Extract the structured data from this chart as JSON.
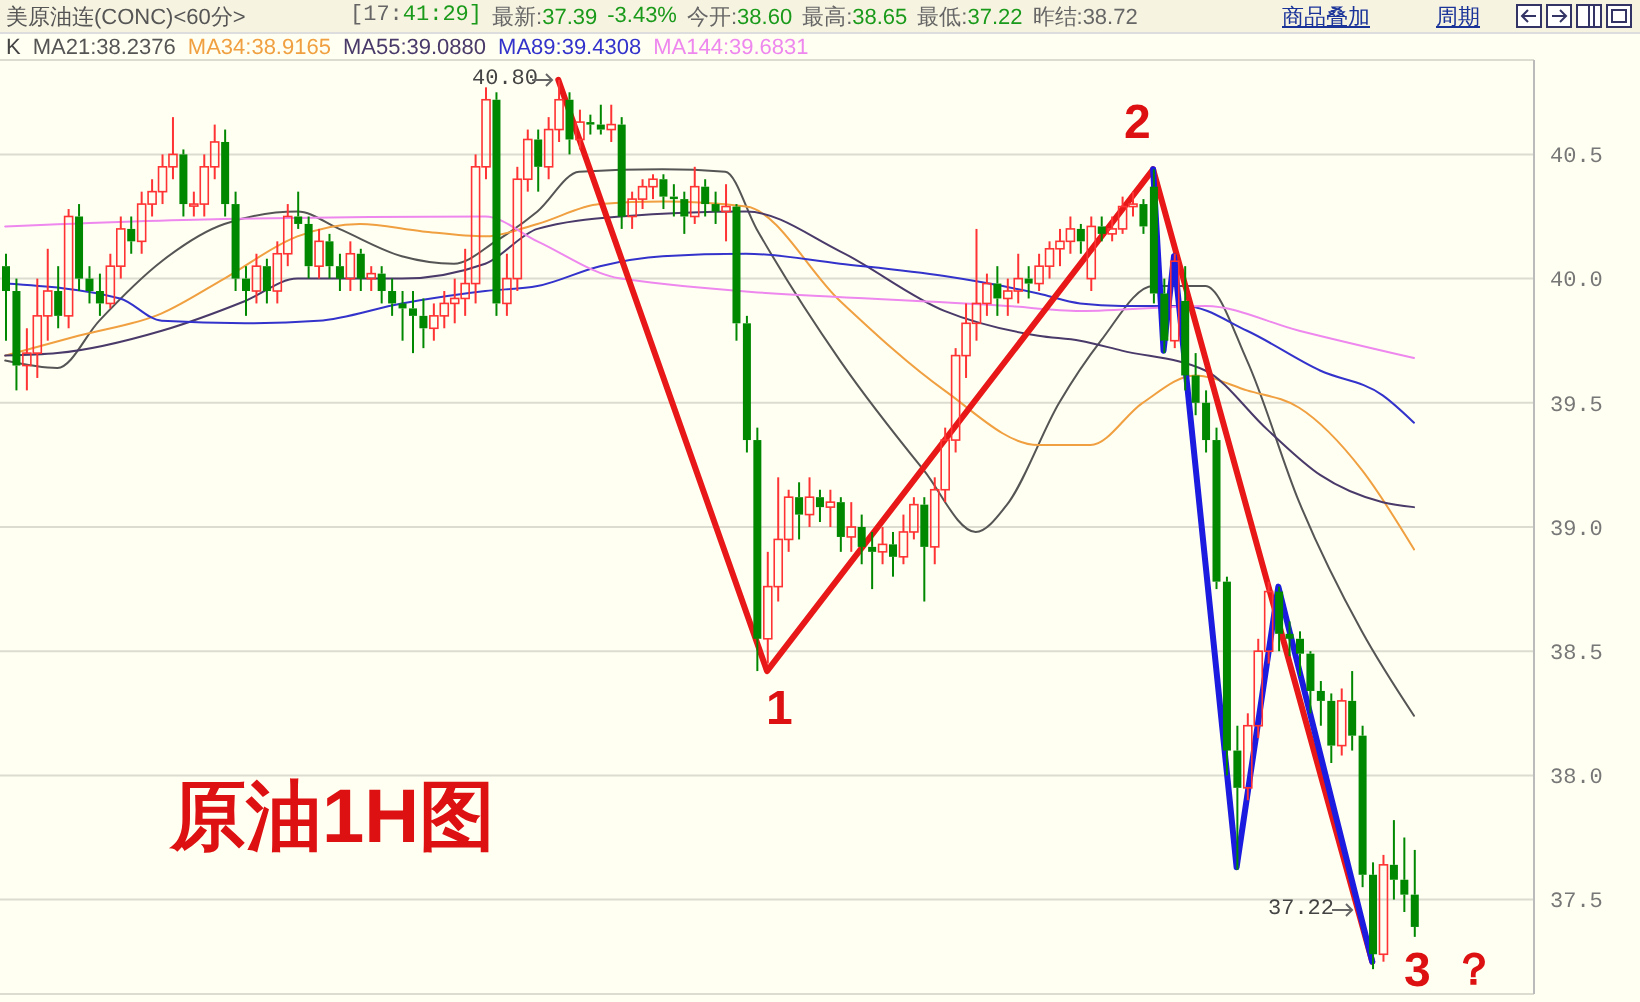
{
  "chart_data": {
    "type": "candlestick",
    "title": "美原油连(CONC)<60分>",
    "categories": [
      null,
      null,
      null,
      null,
      null,
      null,
      null,
      null,
      null,
      null,
      null,
      null,
      null,
      null,
      null,
      null,
      null,
      null,
      null,
      null,
      null,
      null,
      null,
      null,
      null,
      null,
      null,
      null,
      null,
      null,
      null,
      null,
      null,
      null,
      null,
      null,
      null,
      null,
      null,
      null,
      null,
      null,
      null,
      null,
      null,
      null,
      null,
      null,
      null,
      null,
      null,
      null,
      null,
      null,
      null,
      null,
      null,
      null,
      null,
      null,
      null,
      null,
      null,
      null,
      null,
      null,
      null,
      null,
      null,
      null,
      null,
      null,
      null,
      null,
      null,
      null,
      null,
      null,
      null,
      null,
      null,
      null,
      null,
      null,
      null,
      null,
      null,
      null,
      null,
      null,
      null,
      null,
      null,
      null,
      null,
      null,
      null,
      null,
      null,
      null,
      null,
      null,
      null,
      null,
      null,
      null,
      null,
      null,
      null,
      null,
      null,
      null,
      null,
      null,
      null,
      null,
      null,
      null,
      null,
      null,
      null,
      null,
      null,
      null,
      null,
      null,
      null,
      null,
      null,
      null,
      null,
      null,
      null,
      null,
      null,
      null,
      null,
      null,
      null,
      null,
      null,
      null,
      null,
      null,
      null,
      null,
      null
    ],
    "series": [
      {
        "ohlc": [
          [
            40.05,
            40.1,
            39.75,
            39.95
          ],
          [
            39.95,
            40.0,
            39.55,
            39.65
          ],
          [
            39.65,
            39.8,
            39.55,
            39.7
          ],
          [
            39.7,
            40.0,
            39.6,
            39.85
          ],
          [
            39.85,
            40.12,
            39.75,
            39.95
          ],
          [
            39.95,
            40.05,
            39.8,
            39.85
          ],
          [
            39.85,
            40.28,
            39.8,
            40.25
          ],
          [
            40.25,
            40.3,
            39.95,
            40.0
          ],
          [
            40.0,
            40.05,
            39.9,
            39.95
          ],
          [
            39.95,
            40.02,
            39.85,
            39.9
          ],
          [
            39.9,
            40.1,
            39.88,
            40.05
          ],
          [
            40.05,
            40.25,
            40.0,
            40.2
          ],
          [
            40.2,
            40.25,
            40.1,
            40.15
          ],
          [
            40.15,
            40.35,
            40.1,
            40.3
          ],
          [
            40.3,
            40.4,
            40.25,
            40.35
          ],
          [
            40.35,
            40.5,
            40.3,
            40.45
          ],
          [
            40.45,
            40.65,
            40.4,
            40.5
          ],
          [
            40.5,
            40.52,
            40.25,
            40.3
          ],
          [
            40.3,
            40.35,
            40.25,
            40.3
          ],
          [
            40.3,
            40.5,
            40.25,
            40.45
          ],
          [
            40.45,
            40.62,
            40.4,
            40.55
          ],
          [
            40.55,
            40.6,
            40.25,
            40.3
          ],
          [
            40.3,
            40.35,
            39.95,
            40.0
          ],
          [
            40.0,
            40.05,
            39.85,
            39.95
          ],
          [
            39.95,
            40.1,
            39.9,
            40.05
          ],
          [
            40.05,
            40.08,
            39.9,
            39.95
          ],
          [
            39.95,
            40.15,
            39.9,
            40.1
          ],
          [
            40.1,
            40.3,
            40.05,
            40.25
          ],
          [
            40.25,
            40.35,
            40.2,
            40.22
          ],
          [
            40.22,
            40.25,
            40.0,
            40.05
          ],
          [
            40.05,
            40.2,
            40.0,
            40.15
          ],
          [
            40.15,
            40.18,
            40.0,
            40.05
          ],
          [
            40.05,
            40.1,
            39.95,
            40.0
          ],
          [
            40.0,
            40.15,
            39.95,
            40.1
          ],
          [
            40.1,
            40.12,
            39.95,
            40.0
          ],
          [
            40.0,
            40.05,
            39.95,
            40.02
          ],
          [
            40.02,
            40.05,
            39.9,
            39.95
          ],
          [
            39.95,
            40.0,
            39.85,
            39.9
          ],
          [
            39.9,
            39.95,
            39.75,
            39.88
          ],
          [
            39.88,
            39.95,
            39.7,
            39.85
          ],
          [
            39.85,
            39.92,
            39.72,
            39.8
          ],
          [
            39.8,
            39.9,
            39.75,
            39.85
          ],
          [
            39.85,
            39.95,
            39.8,
            39.9
          ],
          [
            39.9,
            40.0,
            39.82,
            39.92
          ],
          [
            39.92,
            40.12,
            39.85,
            39.98
          ],
          [
            39.98,
            40.5,
            39.9,
            40.45
          ],
          [
            40.45,
            40.77,
            40.4,
            40.72
          ],
          [
            40.72,
            40.75,
            39.85,
            39.9
          ],
          [
            39.9,
            40.1,
            39.85,
            40.0
          ],
          [
            40.0,
            40.45,
            39.95,
            40.4
          ],
          [
            40.4,
            40.6,
            40.35,
            40.56
          ],
          [
            40.56,
            40.6,
            40.35,
            40.45
          ],
          [
            40.45,
            40.65,
            40.4,
            40.6
          ],
          [
            40.6,
            40.8,
            40.55,
            40.72
          ],
          [
            40.72,
            40.75,
            40.5,
            40.56
          ],
          [
            40.56,
            40.68,
            40.52,
            40.63
          ],
          [
            40.63,
            40.66,
            40.58,
            40.62
          ],
          [
            40.62,
            40.7,
            40.58,
            40.6
          ],
          [
            40.6,
            40.7,
            40.55,
            40.62
          ],
          [
            40.62,
            40.65,
            40.2,
            40.25
          ],
          [
            40.25,
            40.35,
            40.2,
            40.32
          ],
          [
            40.32,
            40.4,
            40.28,
            40.37
          ],
          [
            40.37,
            40.42,
            40.32,
            40.4
          ],
          [
            40.4,
            40.42,
            40.28,
            40.33
          ],
          [
            40.33,
            40.38,
            40.25,
            40.32
          ],
          [
            40.32,
            40.35,
            40.18,
            40.25
          ],
          [
            40.25,
            40.45,
            40.22,
            40.37
          ],
          [
            40.37,
            40.4,
            40.25,
            40.3
          ],
          [
            40.3,
            40.35,
            40.22,
            40.27
          ],
          [
            40.27,
            40.38,
            40.15,
            40.29
          ],
          [
            40.29,
            40.3,
            39.75,
            39.82
          ],
          [
            39.82,
            39.85,
            39.3,
            39.35
          ],
          [
            39.35,
            39.4,
            38.42,
            38.55
          ],
          [
            38.55,
            38.9,
            38.45,
            38.76
          ],
          [
            38.76,
            39.2,
            38.7,
            38.95
          ],
          [
            38.95,
            39.15,
            38.9,
            39.12
          ],
          [
            39.12,
            39.18,
            38.95,
            39.05
          ],
          [
            39.05,
            39.2,
            39.0,
            39.12
          ],
          [
            39.12,
            39.15,
            39.02,
            39.08
          ],
          [
            39.08,
            39.15,
            39.0,
            39.1
          ],
          [
            39.1,
            39.12,
            38.9,
            38.96
          ],
          [
            38.96,
            39.1,
            38.9,
            39.0
          ],
          [
            39.0,
            39.05,
            38.85,
            38.92
          ],
          [
            38.92,
            38.98,
            38.75,
            38.9
          ],
          [
            38.9,
            39.0,
            38.85,
            38.93
          ],
          [
            38.93,
            38.98,
            38.8,
            38.88
          ],
          [
            38.88,
            39.05,
            38.85,
            38.98
          ],
          [
            38.98,
            39.12,
            38.95,
            39.09
          ],
          [
            39.09,
            39.12,
            38.7,
            38.92
          ],
          [
            38.92,
            39.2,
            38.85,
            39.15
          ],
          [
            39.15,
            39.4,
            39.1,
            39.35
          ],
          [
            39.35,
            39.72,
            39.3,
            39.69
          ],
          [
            39.69,
            39.9,
            39.6,
            39.82
          ],
          [
            39.82,
            40.2,
            39.75,
            39.9
          ],
          [
            39.9,
            40.02,
            39.85,
            39.98
          ],
          [
            39.98,
            40.05,
            39.85,
            39.92
          ],
          [
            39.92,
            40.0,
            39.85,
            39.95
          ],
          [
            39.95,
            40.1,
            39.9,
            40.0
          ],
          [
            40.0,
            40.05,
            39.92,
            39.98
          ],
          [
            39.98,
            40.1,
            39.95,
            40.05
          ],
          [
            40.05,
            40.15,
            40.0,
            40.12
          ],
          [
            40.12,
            40.2,
            40.05,
            40.15
          ],
          [
            40.15,
            40.25,
            40.1,
            40.2
          ],
          [
            40.2,
            40.22,
            40.1,
            40.15
          ],
          [
            40.0,
            40.25,
            39.95,
            40.21
          ],
          [
            40.21,
            40.25,
            40.15,
            40.18
          ],
          [
            40.18,
            40.25,
            40.15,
            40.2
          ],
          [
            40.2,
            40.33,
            40.18,
            40.29
          ],
          [
            40.29,
            40.35,
            40.25,
            40.3
          ],
          [
            40.3,
            40.32,
            40.18,
            40.21
          ],
          [
            40.37,
            40.44,
            39.9,
            39.94
          ],
          [
            39.94,
            40.0,
            39.7,
            39.75
          ],
          [
            39.75,
            40.1,
            39.72,
            40.07
          ],
          [
            39.91,
            40.05,
            39.55,
            39.61
          ],
          [
            39.61,
            39.7,
            39.45,
            39.5
          ],
          [
            39.5,
            39.55,
            39.3,
            39.35
          ],
          [
            39.35,
            39.4,
            38.75,
            38.78
          ],
          [
            38.78,
            38.8,
            38.0,
            38.1
          ],
          [
            38.1,
            38.2,
            37.62,
            37.95
          ],
          [
            37.95,
            38.25,
            37.9,
            38.2
          ],
          [
            38.2,
            38.55,
            38.15,
            38.5
          ],
          [
            38.5,
            38.78,
            38.45,
            38.74
          ],
          [
            38.74,
            38.76,
            38.5,
            38.57
          ],
          [
            38.57,
            38.62,
            38.48,
            38.55
          ],
          [
            38.55,
            38.58,
            38.4,
            38.49
          ],
          [
            38.49,
            38.5,
            38.25,
            38.34
          ],
          [
            38.34,
            38.38,
            38.2,
            38.3
          ],
          [
            38.3,
            38.33,
            38.05,
            38.12
          ],
          [
            38.12,
            38.35,
            38.08,
            38.3
          ],
          [
            38.3,
            38.42,
            38.1,
            38.16
          ],
          [
            38.16,
            38.2,
            37.55,
            37.6
          ],
          [
            37.6,
            37.65,
            37.22,
            37.28
          ],
          [
            37.28,
            37.68,
            37.25,
            37.64
          ],
          [
            37.64,
            37.82,
            37.5,
            37.58
          ],
          [
            37.58,
            37.75,
            37.45,
            37.52
          ],
          [
            37.52,
            37.7,
            37.35,
            37.39
          ],
          null,
          null,
          null,
          null,
          null,
          null,
          null,
          null,
          null,
          null,
          null
        ],
        "colors": [
          "#008800",
          "#008800",
          "#ff3333",
          "#ff3333",
          "#ff3333",
          "#008800",
          "#ff3333",
          "#008800",
          "#008800",
          "#008800",
          "#ff3333",
          "#ff3333",
          "#008800",
          "#ff3333",
          "#ff3333",
          "#ff3333",
          "#ff3333",
          "#008800",
          "#ff3333",
          "#ff3333",
          "#ff3333",
          "#008800",
          "#008800",
          "#008800",
          "#ff3333",
          "#008800",
          "#ff3333",
          "#ff3333",
          "#008800",
          "#008800",
          "#ff3333",
          "#008800",
          "#008800",
          "#ff3333",
          "#008800",
          "#ff3333",
          "#008800",
          "#008800",
          "#008800",
          "#008800",
          "#008800",
          "#ff3333",
          "#ff3333",
          "#ff3333",
          "#ff3333",
          "#ff3333",
          "#ff3333",
          "#008800",
          "#ff3333",
          "#ff3333",
          "#ff3333",
          "#008800",
          "#ff3333",
          "#ff3333",
          "#008800",
          "#ff3333",
          "#008800",
          "#008800",
          "#ff3333",
          "#008800",
          "#ff3333",
          "#ff3333",
          "#ff3333",
          "#008800",
          "#008800",
          "#008800",
          "#ff3333",
          "#008800",
          "#008800",
          "#ff3333",
          "#008800",
          "#008800",
          "#008800",
          "#ff3333",
          "#ff3333",
          "#ff3333",
          "#008800",
          "#ff3333",
          "#008800",
          "#ff3333",
          "#008800",
          "#ff3333",
          "#008800",
          "#008800",
          "#ff3333",
          "#008800",
          "#ff3333",
          "#ff3333",
          "#008800",
          "#ff3333",
          "#ff3333",
          "#ff3333",
          "#ff3333",
          "#ff3333",
          "#ff3333",
          "#008800",
          "#ff3333",
          "#ff3333",
          "#008800",
          "#ff3333",
          "#ff3333",
          "#ff3333",
          "#ff3333",
          "#008800",
          "#ff3333",
          "#008800",
          "#ff3333",
          "#ff3333",
          "#ff3333",
          "#008800",
          "#008800",
          "#008800",
          "#ff3333",
          "#008800",
          "#008800",
          "#008800",
          "#008800",
          "#008800",
          "#008800",
          "#ff3333",
          "#ff3333",
          "#ff3333",
          "#008800",
          "#008800",
          "#008800",
          "#008800",
          "#008800",
          "#008800",
          "#ff3333",
          "#008800",
          "#008800",
          "#008800",
          "#ff3333",
          "#008800",
          "#008800",
          "#008800",
          null,
          null,
          null,
          null,
          null,
          null,
          null,
          null,
          null,
          null,
          null
        ]
      },
      {
        "type": "line",
        "name": "MA21:38.2376",
        "color": "#555555",
        "values": [
          39.67,
          null,
          null,
          null,
          null,
          39.64,
          null,
          null,
          null,
          39.83,
          null,
          null,
          null,
          null,
          null,
          40.07,
          null,
          null,
          null,
          null,
          null,
          40.22,
          null,
          null,
          null,
          null,
          null,
          null,
          40.27,
          null,
          null,
          null,
          40.2,
          null,
          null,
          null,
          null,
          null,
          40.09,
          null,
          null,
          null,
          null,
          40.06,
          null,
          null,
          null,
          40.15,
          null,
          null,
          null,
          40.27,
          null,
          null,
          null,
          40.43,
          null,
          null,
          null,
          null,
          null,
          null,
          null,
          40.44,
          null,
          null,
          null,
          null,
          null,
          40.43,
          null,
          null,
          40.2,
          null,
          null,
          null,
          null,
          null,
          null,
          null,
          39.67,
          null,
          null,
          null,
          null,
          null,
          null,
          null,
          39.23,
          null,
          null,
          null,
          null,
          38.98,
          null,
          null,
          39.09,
          null,
          null,
          null,
          null,
          39.5,
          null,
          null,
          null,
          39.75,
          null,
          null,
          null,
          null,
          39.97,
          null,
          null,
          null,
          null,
          39.97,
          null,
          null,
          null,
          39.67,
          null,
          null,
          null,
          null,
          39.1,
          null,
          null,
          null,
          null,
          null,
          38.58,
          null,
          null,
          null,
          null,
          38.24,
          null,
          null,
          null,
          null,
          null,
          null,
          null,
          null,
          null,
          null,
          null
        ]
      },
      {
        "type": "line",
        "name": "MA34:38.9165",
        "color": "#f0a040",
        "values": [
          39.69,
          null,
          null,
          null,
          null,
          null,
          null,
          39.77,
          null,
          null,
          null,
          null,
          null,
          null,
          null,
          39.86,
          null,
          null,
          null,
          null,
          null,
          40.0,
          null,
          null,
          null,
          null,
          null,
          null,
          40.17,
          null,
          null,
          null,
          null,
          null,
          40.22,
          null,
          null,
          null,
          null,
          null,
          40.19,
          null,
          null,
          null,
          null,
          null,
          40.17,
          null,
          null,
          null,
          null,
          40.22,
          null,
          null,
          null,
          null,
          null,
          40.3,
          null,
          null,
          null,
          null,
          null,
          40.31,
          null,
          null,
          null,
          null,
          null,
          null,
          null,
          40.29,
          null,
          null,
          null,
          null,
          null,
          null,
          null,
          null,
          39.91,
          null,
          null,
          null,
          null,
          null,
          null,
          null,
          null,
          null,
          39.55,
          null,
          null,
          null,
          null,
          null,
          null,
          null,
          null,
          39.33,
          null,
          null,
          null,
          null,
          39.33,
          null,
          null,
          null,
          null,
          39.5,
          null,
          null,
          null,
          null,
          39.61,
          null,
          null,
          null,
          null,
          39.55,
          null,
          null,
          null,
          null,
          39.48,
          null,
          null,
          null,
          null,
          null,
          39.23,
          null,
          null,
          null,
          null,
          38.91,
          null,
          null,
          null,
          null,
          null,
          null,
          null,
          null,
          null,
          null,
          null
        ]
      },
      {
        "type": "line",
        "name": "MA55:39.0880",
        "color": "#4a3a6a",
        "values": [
          39.69,
          null,
          null,
          null,
          null,
          39.7,
          null,
          null,
          null,
          null,
          null,
          null,
          null,
          null,
          null,
          39.79,
          null,
          null,
          null,
          null,
          null,
          null,
          null,
          39.91,
          null,
          null,
          null,
          null,
          40.0,
          null,
          null,
          null,
          null,
          null,
          null,
          null,
          null,
          null,
          40.0,
          null,
          null,
          null,
          null,
          null,
          null,
          null,
          40.06,
          null,
          null,
          null,
          null,
          40.2,
          null,
          null,
          null,
          null,
          null,
          null,
          null,
          40.25,
          null,
          null,
          null,
          null,
          null,
          null,
          null,
          null,
          null,
          null,
          null,
          40.27,
          null,
          null,
          null,
          null,
          null,
          null,
          null,
          null,
          40.11,
          null,
          null,
          null,
          null,
          null,
          null,
          null,
          null,
          null,
          39.87,
          null,
          null,
          null,
          null,
          null,
          null,
          null,
          null,
          39.77,
          null,
          null,
          null,
          39.75,
          null,
          null,
          null,
          39.71,
          null,
          null,
          null,
          null,
          null,
          null,
          null,
          39.63,
          null,
          null,
          null,
          null,
          null,
          39.39,
          null,
          null,
          null,
          null,
          39.21,
          null,
          null,
          null,
          null,
          null,
          39.1,
          null,
          null,
          39.08,
          null,
          null,
          null,
          null,
          null,
          null,
          null,
          null,
          null,
          null,
          null
        ]
      },
      {
        "type": "line",
        "name": "MA89:39.4308",
        "color": "#3333cc",
        "values": [
          39.98,
          null,
          null,
          null,
          null,
          null,
          null,
          null,
          null,
          null,
          null,
          39.92,
          null,
          null,
          null,
          39.83,
          null,
          null,
          null,
          null,
          null,
          null,
          null,
          39.82,
          null,
          null,
          null,
          null,
          null,
          null,
          39.83,
          null,
          null,
          null,
          null,
          null,
          null,
          null,
          39.9,
          null,
          null,
          null,
          null,
          null,
          null,
          null,
          39.95,
          null,
          null,
          null,
          null,
          39.97,
          null,
          null,
          null,
          null,
          null,
          40.05,
          null,
          null,
          null,
          null,
          null,
          40.09,
          null,
          null,
          null,
          null,
          null,
          null,
          null,
          40.1,
          null,
          null,
          null,
          null,
          null,
          null,
          null,
          null,
          40.06,
          null,
          null,
          null,
          null,
          null,
          null,
          null,
          null,
          null,
          40.01,
          null,
          null,
          null,
          null,
          null,
          null,
          null,
          null,
          39.94,
          null,
          null,
          null,
          39.9,
          null,
          null,
          null,
          39.89,
          null,
          null,
          null,
          null,
          null,
          39.89,
          null,
          null,
          null,
          null,
          null,
          39.79,
          null,
          null,
          null,
          null,
          null,
          null,
          39.63,
          null,
          null,
          null,
          null,
          null,
          39.53,
          null,
          null,
          39.42,
          null,
          null,
          null,
          null,
          null,
          null,
          null,
          null,
          null,
          null,
          null
        ]
      },
      {
        "type": "line",
        "name": "MA144:39.6831",
        "color": "#ee88ee",
        "values": [
          40.21,
          null,
          null,
          null,
          null,
          null,
          null,
          null,
          null,
          null,
          null,
          null,
          null,
          null,
          null,
          null,
          null,
          null,
          null,
          null,
          null,
          40.24,
          null,
          null,
          null,
          null,
          null,
          null,
          null,
          null,
          null,
          null,
          null,
          null,
          null,
          null,
          null,
          null,
          null,
          null,
          null,
          null,
          null,
          null,
          null,
          null,
          40.25,
          null,
          null,
          null,
          null,
          40.15,
          null,
          null,
          null,
          null,
          null,
          null,
          null,
          40.0,
          null,
          null,
          null,
          null,
          null,
          null,
          null,
          null,
          null,
          null,
          null,
          null,
          null,
          null,
          null,
          null,
          null,
          null,
          null,
          null,
          null,
          null,
          null,
          null,
          null,
          null,
          null,
          null,
          null,
          null,
          null,
          null,
          null,
          null,
          null,
          null,
          39.89,
          null,
          null,
          null,
          null,
          null,
          null,
          39.87,
          null,
          null,
          null,
          null,
          null,
          null,
          null,
          null,
          null,
          null,
          null,
          39.89,
          null,
          null,
          null,
          null,
          null,
          null,
          null,
          null,
          39.79,
          null,
          null,
          null,
          null,
          null,
          null,
          null,
          null,
          null,
          null,
          39.68,
          null,
          null,
          null,
          null,
          null,
          null,
          null,
          null,
          null,
          null,
          null
        ]
      },
      {
        "type": "line",
        "color": "#e81818",
        "values": [
          null,
          null,
          null,
          null,
          null,
          null,
          null,
          null,
          null,
          null,
          null,
          null,
          null,
          null,
          null,
          null,
          null,
          null,
          null,
          null,
          null,
          null,
          null,
          null,
          null,
          null,
          null,
          null,
          null,
          null,
          null,
          null,
          null,
          null,
          null,
          null,
          null,
          null,
          null,
          null,
          null,
          null,
          null,
          null,
          null,
          null,
          null,
          null,
          null,
          null,
          null,
          null,
          null,
          40.8,
          null,
          null,
          null,
          null,
          null,
          null,
          null,
          null,
          null,
          null,
          null,
          null,
          null,
          null,
          null,
          null,
          null,
          null,
          null,
          38.42,
          null,
          null,
          null,
          null,
          null,
          null,
          null,
          null,
          null,
          null,
          null,
          null,
          null,
          null,
          null,
          null,
          null,
          null,
          null,
          null,
          null,
          null,
          null,
          null,
          null,
          null,
          null,
          null,
          null,
          null,
          null,
          null,
          null,
          null,
          null,
          null,
          40.44,
          null,
          null,
          null,
          null,
          null,
          null,
          null,
          null,
          null,
          null,
          null,
          null,
          null,
          null,
          null,
          null,
          null,
          null,
          null,
          null,
          37.25,
          null,
          null,
          null,
          null,
          null,
          null,
          null,
          null,
          null,
          null,
          null,
          null,
          null,
          null,
          null
        ]
      },
      {
        "type": "line",
        "color": "#1c1ce0",
        "values": [
          null,
          null,
          null,
          null,
          null,
          null,
          null,
          null,
          null,
          null,
          null,
          null,
          null,
          null,
          null,
          null,
          null,
          null,
          null,
          null,
          null,
          null,
          null,
          null,
          null,
          null,
          null,
          null,
          null,
          null,
          null,
          null,
          null,
          null,
          null,
          null,
          null,
          null,
          null,
          null,
          null,
          null,
          null,
          null,
          null,
          null,
          null,
          null,
          null,
          null,
          null,
          null,
          null,
          null,
          null,
          null,
          null,
          null,
          null,
          null,
          null,
          null,
          null,
          null,
          null,
          null,
          null,
          null,
          null,
          null,
          null,
          null,
          null,
          null,
          null,
          null,
          null,
          null,
          null,
          null,
          null,
          null,
          null,
          null,
          null,
          null,
          null,
          null,
          null,
          null,
          null,
          null,
          null,
          null,
          null,
          null,
          null,
          null,
          null,
          null,
          null,
          null,
          null,
          null,
          null,
          null,
          null,
          null,
          null,
          null,
          40.44,
          39.71,
          40.09,
          null,
          null,
          null,
          null,
          null,
          37.63,
          null,
          null,
          null,
          38.76,
          null,
          null,
          null,
          null,
          null,
          null,
          null,
          null,
          37.25,
          null,
          null,
          null,
          null,
          null,
          null,
          null,
          null,
          null,
          null,
          null,
          null,
          null,
          null,
          null
        ]
      }
    ],
    "ylim": [
      37.12,
      40.88
    ],
    "yticks": [
      37.5,
      {
        "value": 38,
        "label": "38.0"
      },
      38.5,
      {
        "value": 39,
        "label": "39.0"
      },
      39.5,
      {
        "value": 40,
        "label": "40.0"
      },
      40.5
    ],
    "grid": "y",
    "legend": "top left",
    "annotations": [
      "[17:41:29]",
      "最新:37.39",
      "-3.43%",
      "今开:38.60",
      "最高:38.65",
      "最低:37.22",
      "昨结:38.72",
      "商品叠加",
      "周期",
      "1",
      "2",
      "3",
      "？",
      "原油1H图",
      "40.80",
      "37.22",
      "K"
    ]
  }
}
